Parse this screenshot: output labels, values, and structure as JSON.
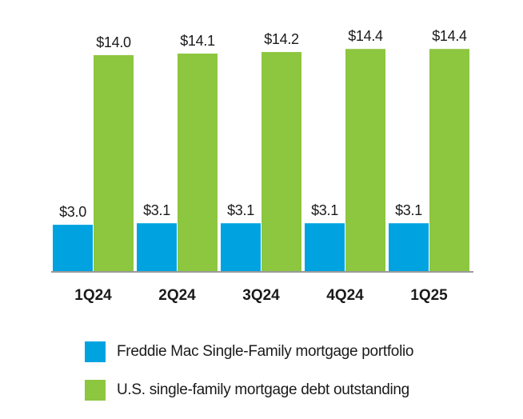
{
  "chart_data": {
    "type": "bar",
    "categories": [
      "1Q24",
      "2Q24",
      "3Q24",
      "4Q24",
      "1Q25"
    ],
    "series": [
      {
        "name": "Freddie Mac Single-Family mortgage portfolio",
        "values": [
          3.0,
          3.1,
          3.1,
          3.1,
          3.1
        ],
        "labels": [
          "$3.0",
          "$3.1",
          "$3.1",
          "$3.1",
          "$3.1"
        ],
        "color": "#00a3e0"
      },
      {
        "name": "U.S. single-family mortgage debt outstanding",
        "values": [
          14.0,
          14.1,
          14.2,
          14.4,
          14.4
        ],
        "labels": [
          "$14.0",
          "$14.1",
          "$14.2",
          "$14.4",
          "$14.4"
        ],
        "color": "#8dc63f"
      }
    ],
    "ylim": [
      0,
      15.5
    ],
    "grid": false,
    "legend_position": "bottom"
  }
}
